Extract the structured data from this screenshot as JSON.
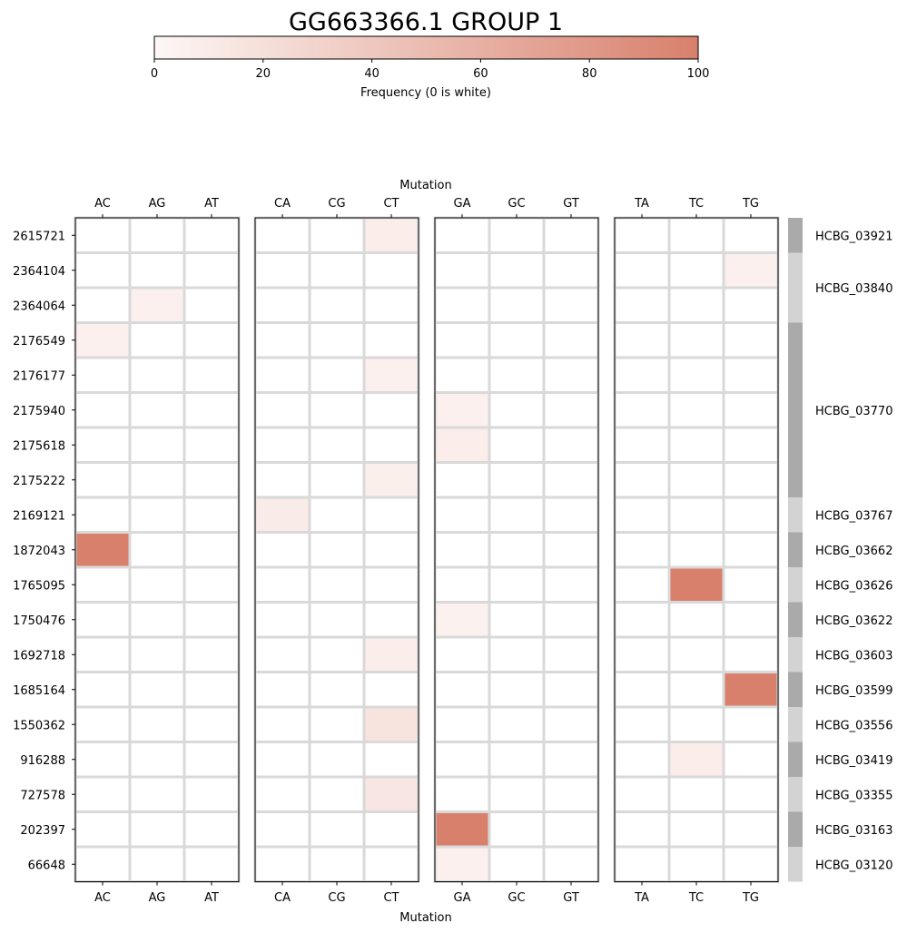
{
  "chart_data": {
    "type": "heatmap",
    "title": "GG663366.1 GROUP 1",
    "colorbar": {
      "label": "Frequency (0 is white)",
      "range": [
        0,
        100
      ],
      "ticks": [
        0,
        20,
        40,
        60,
        80,
        100
      ],
      "color_low": "#fdf7f5",
      "color_high": "#d8806c"
    },
    "xlabel": "Mutation",
    "panels": [
      [
        "AC",
        "AG",
        "AT"
      ],
      [
        "CA",
        "CG",
        "CT"
      ],
      [
        "GA",
        "GC",
        "GT"
      ],
      [
        "TA",
        "TC",
        "TG"
      ]
    ],
    "rows": [
      "2615721",
      "2364104",
      "2364064",
      "2176549",
      "2176177",
      "2175940",
      "2175618",
      "2175222",
      "2169121",
      "1872043",
      "1765095",
      "1750476",
      "1692718",
      "1685164",
      "1550362",
      "916288",
      "727578",
      "202397",
      "66648"
    ],
    "cells": [
      {
        "row": "2615721",
        "col": "CT",
        "value": 8
      },
      {
        "row": "2364104",
        "col": "TG",
        "value": 6
      },
      {
        "row": "2364064",
        "col": "AG",
        "value": 6
      },
      {
        "row": "2176549",
        "col": "AC",
        "value": 6
      },
      {
        "row": "2176177",
        "col": "CT",
        "value": 6
      },
      {
        "row": "2175940",
        "col": "GA",
        "value": 6
      },
      {
        "row": "2175618",
        "col": "GA",
        "value": 8
      },
      {
        "row": "2175222",
        "col": "CT",
        "value": 7
      },
      {
        "row": "2169121",
        "col": "CA",
        "value": 10
      },
      {
        "row": "1872043",
        "col": "AC",
        "value": 100
      },
      {
        "row": "1765095",
        "col": "TC",
        "value": 100
      },
      {
        "row": "1750476",
        "col": "GA",
        "value": 5
      },
      {
        "row": "1692718",
        "col": "CT",
        "value": 8
      },
      {
        "row": "1685164",
        "col": "TG",
        "value": 100
      },
      {
        "row": "1550362",
        "col": "CT",
        "value": 16
      },
      {
        "row": "916288",
        "col": "TC",
        "value": 8
      },
      {
        "row": "727578",
        "col": "CT",
        "value": 14
      },
      {
        "row": "202397",
        "col": "GA",
        "value": 100
      },
      {
        "row": "66648",
        "col": "GA",
        "value": 6
      }
    ],
    "groups": [
      {
        "label": "HCBG_03921",
        "rows": 1,
        "shade": "#aaaaaa"
      },
      {
        "label": "HCBG_03840",
        "rows": 2,
        "shade": "#d3d3d3"
      },
      {
        "label": "HCBG_03770",
        "rows": 5,
        "shade": "#aaaaaa"
      },
      {
        "label": "HCBG_03767",
        "rows": 1,
        "shade": "#d3d3d3"
      },
      {
        "label": "HCBG_03662",
        "rows": 1,
        "shade": "#aaaaaa"
      },
      {
        "label": "HCBG_03626",
        "rows": 1,
        "shade": "#d3d3d3"
      },
      {
        "label": "HCBG_03622",
        "rows": 1,
        "shade": "#aaaaaa"
      },
      {
        "label": "HCBG_03603",
        "rows": 1,
        "shade": "#d3d3d3"
      },
      {
        "label": "HCBG_03599",
        "rows": 1,
        "shade": "#aaaaaa"
      },
      {
        "label": "HCBG_03556",
        "rows": 1,
        "shade": "#d3d3d3"
      },
      {
        "label": "HCBG_03419",
        "rows": 1,
        "shade": "#aaaaaa"
      },
      {
        "label": "HCBG_03355",
        "rows": 1,
        "shade": "#d3d3d3"
      },
      {
        "label": "HCBG_03163",
        "rows": 1,
        "shade": "#aaaaaa"
      },
      {
        "label": "HCBG_03120",
        "rows": 1,
        "shade": "#d3d3d3"
      }
    ],
    "grid_color": "#d9d9d9"
  }
}
